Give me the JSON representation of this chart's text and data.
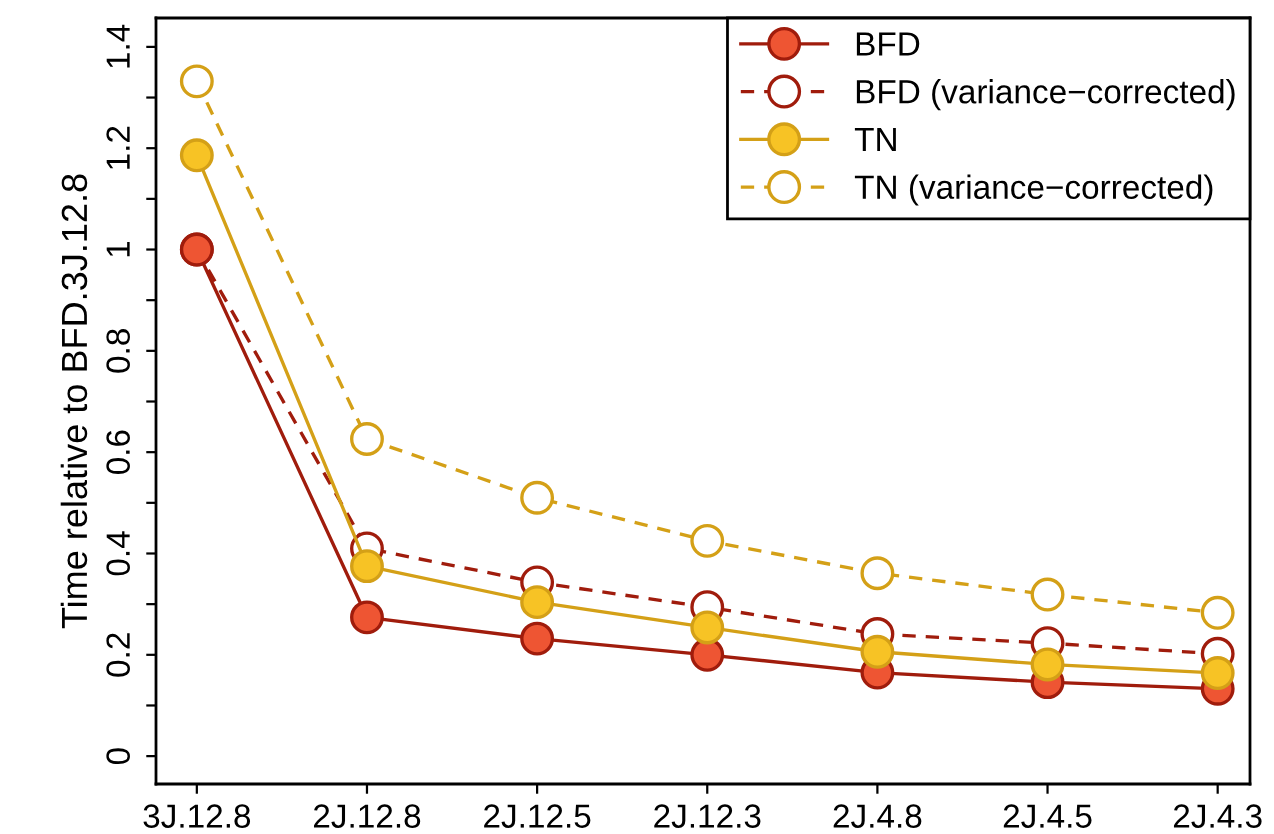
{
  "chart_data": {
    "type": "line",
    "ylabel": "Time relative to BFD.3J.12.8",
    "categories": [
      "3J.12.8",
      "2J.12.8",
      "2J.12.5",
      "2J.12.3",
      "2J.4.8",
      "2J.4.5",
      "2J.4.3"
    ],
    "series": [
      {
        "name": "BFD",
        "color": "#a01c0c",
        "line_style": "solid",
        "values": [
          1.0,
          0.274,
          0.232,
          0.2,
          0.165,
          0.146,
          0.133
        ]
      },
      {
        "name": "BFD (variance−corrected)",
        "color": "#a01c0c",
        "line_style": "dashed",
        "values": [
          1.0,
          0.41,
          0.343,
          0.294,
          0.241,
          0.223,
          0.202
        ]
      },
      {
        "name": "TN",
        "color": "#d4a017",
        "line_style": "solid",
        "values": [
          1.186,
          0.375,
          0.304,
          0.254,
          0.206,
          0.181,
          0.164
        ]
      },
      {
        "name": "TN (variance−corrected)",
        "color": "#d4a017",
        "line_style": "dashed",
        "values": [
          1.332,
          0.626,
          0.51,
          0.425,
          0.361,
          0.319,
          0.283
        ]
      }
    ],
    "ylim": [
      -0.055,
      1.457
    ],
    "yticks": [
      0,
      {
        "value": 0.1,
        "label": null
      },
      0.2,
      {
        "value": 0.3,
        "label": null
      },
      0.4,
      {
        "value": 0.5,
        "label": null
      },
      0.6,
      {
        "value": 0.7,
        "label": null
      },
      0.8,
      {
        "value": 0.9,
        "label": null
      },
      1,
      {
        "value": 1.1,
        "label": null
      },
      1.2,
      {
        "value": 1.3,
        "label": null
      },
      1.4
    ],
    "marker": "circle",
    "grid": false,
    "legend": "top right"
  }
}
